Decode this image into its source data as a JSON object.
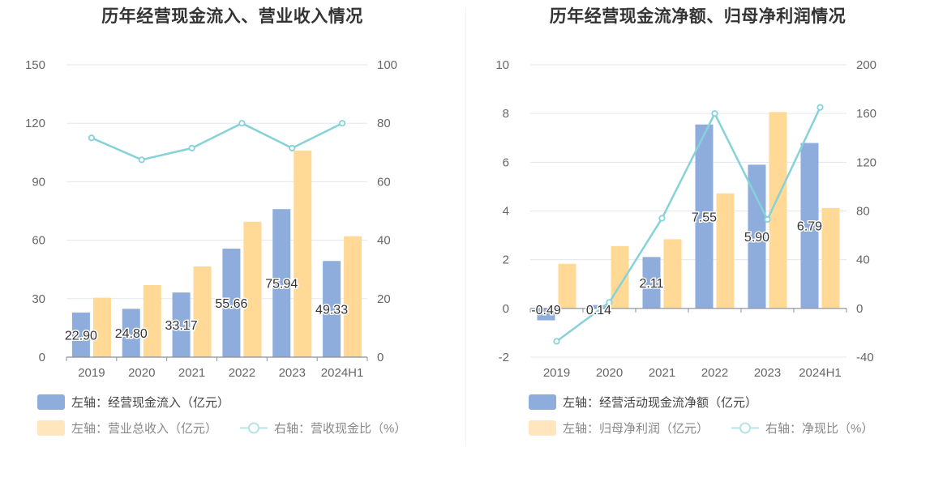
{
  "chart_data": [
    {
      "type": "bar",
      "title": "历年经营现金流入、营业收入情况",
      "categories": [
        "2019",
        "2020",
        "2021",
        "2022",
        "2023",
        "2024H1"
      ],
      "left_axis": {
        "ticks": [
          "150",
          "120",
          "90",
          "60",
          "30",
          "0"
        ],
        "ylim": [
          0,
          150
        ]
      },
      "right_axis": {
        "ticks": [
          "100",
          "80",
          "60",
          "40",
          "20",
          "0"
        ],
        "ylim": [
          0,
          100
        ]
      },
      "series": [
        {
          "name": "左轴：经营现金流入（亿元）",
          "kind": "bar",
          "axis": "left",
          "color": "#8eaddc",
          "values": [
            22.9,
            24.8,
            33.17,
            55.66,
            75.94,
            49.33
          ],
          "labels": [
            "22.90",
            "24.80",
            "33.17",
            "55.66",
            "75.94",
            "49.33"
          ]
        },
        {
          "name": "左轴：营业总收入（亿元）",
          "kind": "bar",
          "axis": "left",
          "color": "#ffd995",
          "values": [
            30.5,
            37,
            46.5,
            69.5,
            106,
            62
          ]
        },
        {
          "name": "右轴：营收现金比（%）",
          "kind": "line",
          "axis": "right",
          "color": "#86d2d9",
          "values": [
            75,
            67.5,
            71.5,
            80,
            71.5,
            80
          ]
        }
      ]
    },
    {
      "type": "bar",
      "title": "历年经营现金流净额、归母净利润情况",
      "categories": [
        "2019",
        "2020",
        "2021",
        "2022",
        "2023",
        "2024H1"
      ],
      "left_axis": {
        "ticks": [
          "10",
          "8",
          "6",
          "4",
          "2",
          "0",
          "-2"
        ],
        "ylim": [
          -2,
          10
        ]
      },
      "right_axis": {
        "ticks": [
          "200",
          "160",
          "120",
          "80",
          "40",
          "0",
          "-40"
        ],
        "ylim": [
          -40,
          200
        ]
      },
      "series": [
        {
          "name": "左轴：经营活动现金流净额（亿元）",
          "kind": "bar",
          "axis": "left",
          "color": "#8eaddc",
          "values": [
            -0.49,
            0.14,
            2.11,
            7.55,
            5.9,
            6.79
          ],
          "labels": [
            "-0.49",
            "0.14",
            "2.11",
            "7.55",
            "5.90",
            "6.79"
          ]
        },
        {
          "name": "左轴：归母净利润（亿元）",
          "kind": "bar",
          "axis": "left",
          "color": "#ffd995",
          "values": [
            1.83,
            2.56,
            2.84,
            4.72,
            8.06,
            4.12
          ]
        },
        {
          "name": "右轴：净现比（%）",
          "kind": "line",
          "axis": "right",
          "color": "#86d2d9",
          "values": [
            -27,
            5,
            74,
            160,
            73,
            165
          ]
        }
      ]
    }
  ]
}
